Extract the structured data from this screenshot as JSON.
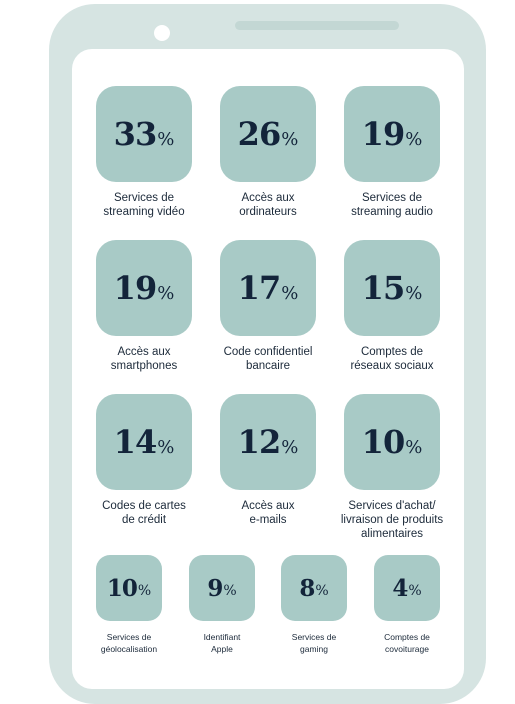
{
  "colors": {
    "phone_frame": "#d6e4e2",
    "tile": "#a8cac6",
    "text": "#13243a"
  },
  "big_stats": [
    {
      "value": "33",
      "unit": "%",
      "label": [
        "Services de",
        "streaming vidéo"
      ]
    },
    {
      "value": "26",
      "unit": "%",
      "label": [
        "Accès aux",
        "ordinateurs"
      ]
    },
    {
      "value": "19",
      "unit": "%",
      "label": [
        "Services de",
        "streaming audio"
      ]
    },
    {
      "value": "19",
      "unit": "%",
      "label": [
        "Accès aux",
        "smartphones"
      ]
    },
    {
      "value": "17",
      "unit": "%",
      "label": [
        "Code confidentiel",
        "bancaire"
      ]
    },
    {
      "value": "15",
      "unit": "%",
      "label": [
        "Comptes de",
        "réseaux sociaux"
      ]
    },
    {
      "value": "14",
      "unit": "%",
      "label": [
        "Codes de cartes",
        "de crédit"
      ]
    },
    {
      "value": "12",
      "unit": "%",
      "label": [
        "Accès aux",
        "e-mails"
      ]
    },
    {
      "value": "10",
      "unit": "%",
      "label": [
        "Services d'achat/",
        "livraison de produits",
        "alimentaires"
      ]
    }
  ],
  "small_stats": [
    {
      "value": "10",
      "unit": "%",
      "label": [
        "Services de",
        "géolocalisation"
      ]
    },
    {
      "value": "9",
      "unit": "%",
      "label": [
        "Identifiant",
        "Apple"
      ]
    },
    {
      "value": "8",
      "unit": "%",
      "label": [
        "Services de",
        "gaming"
      ]
    },
    {
      "value": "4",
      "unit": "%",
      "label": [
        "Comptes de",
        "covoiturage"
      ]
    }
  ]
}
